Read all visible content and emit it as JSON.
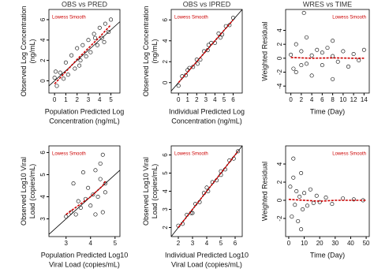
{
  "chart_data": [
    {
      "type": "scatter",
      "title": "OBS vs PRED",
      "xlabel": [
        "Population Predicted Log",
        "Concentration (ng/mL)"
      ],
      "ylabel": [
        "Observed Log Concentration",
        "(ng/mL)"
      ],
      "xlim": [
        -0.5,
        5.8
      ],
      "ylim": [
        -1.2,
        7
      ],
      "xticks": [
        0,
        1,
        2,
        3,
        4,
        5
      ],
      "yticks": [
        0,
        2,
        4,
        6
      ],
      "identity_line": true,
      "legend": "top-left",
      "x": [
        0,
        0.2,
        0.5,
        0.8,
        1,
        1.2,
        1.5,
        1.8,
        2,
        2.3,
        2.5,
        2.8,
        3,
        3.2,
        3.5,
        3.8,
        4,
        4.2,
        4.5,
        4.8,
        5,
        2.2,
        3.6,
        4.4,
        0.1
      ],
      "y": [
        0.3,
        -0.5,
        0.8,
        0.2,
        1.8,
        0.6,
        2.5,
        1.2,
        3.2,
        2,
        3.5,
        2.4,
        4,
        2.8,
        4.6,
        3.5,
        5.2,
        4.2,
        5.6,
        4.8,
        6,
        1.5,
        4.2,
        3.8,
        0.9
      ],
      "smooth": {
        "name": "Lowess Smooth",
        "color": "#cc0000",
        "x": [
          0,
          1,
          2,
          3,
          4,
          5
        ],
        "y": [
          -0.3,
          0.9,
          2.1,
          3.2,
          4.3,
          5.5
        ]
      }
    },
    {
      "type": "scatter",
      "title": "OBS vs IPRED",
      "xlabel": [
        "Individual Predicted Log",
        "Concentration (ng/mL)"
      ],
      "ylabel": [
        "Observed Log Concentration",
        "(ng/mL)"
      ],
      "xlim": [
        -0.8,
        7
      ],
      "ylim": [
        -1,
        7
      ],
      "xticks": [
        0,
        1,
        2,
        3,
        4,
        5,
        6
      ],
      "yticks": [
        0,
        2,
        4,
        6
      ],
      "identity_line": true,
      "legend": "top-left",
      "x": [
        0,
        0.4,
        0.8,
        1.2,
        1.6,
        2,
        2.4,
        2.8,
        3.2,
        3.6,
        4,
        4.4,
        4.8,
        5.2,
        5.6,
        6,
        2.1,
        3.3,
        4.6,
        1
      ],
      "y": [
        -0.3,
        0.6,
        0.7,
        1.4,
        1.5,
        2.2,
        2.2,
        3,
        3.1,
        3.8,
        3.8,
        4.7,
        4.6,
        5.4,
        5.5,
        6.2,
        1.8,
        3.6,
        4.3,
        1.2
      ],
      "smooth": {
        "name": "Lowess Smooth",
        "color": "#cc0000",
        "x": [
          0,
          3,
          6
        ],
        "y": [
          0,
          3,
          6
        ]
      }
    },
    {
      "type": "scatter",
      "title": "WRES vs TIME",
      "xlabel": [
        "Time (Day)"
      ],
      "ylabel": [
        "Weighted Residual"
      ],
      "xlim": [
        -1,
        15
      ],
      "ylim": [
        -5,
        7
      ],
      "xticks": [
        0,
        2,
        4,
        6,
        8,
        10,
        12,
        14
      ],
      "yticks": [
        -4,
        -2,
        0,
        2,
        4
      ],
      "identity_line": false,
      "legend": "top-right",
      "x": [
        0,
        0.5,
        1,
        1,
        2,
        2,
        3,
        3,
        4,
        4,
        5,
        6,
        6,
        7,
        8,
        8,
        8,
        9,
        10,
        11,
        12,
        13,
        14,
        2.5
      ],
      "y": [
        0.5,
        -1.5,
        2,
        -2,
        1,
        -1,
        3,
        -0.8,
        0.4,
        -2.5,
        1.2,
        0.8,
        -1,
        1.5,
        2.5,
        -3,
        0.3,
        -0.5,
        1,
        -1.2,
        0.6,
        -0.3,
        1.2,
        6.5
      ],
      "smooth": {
        "name": "Lowess Smooth",
        "color": "#cc0000",
        "x": [
          0,
          4,
          8,
          12,
          14
        ],
        "y": [
          0.1,
          0,
          0.05,
          0,
          0
        ]
      }
    },
    {
      "type": "scatter",
      "xlabel": [
        "Population Predicted Log10",
        "Viral Load (copies/mL)"
      ],
      "ylabel": [
        "Observed Log10 Viral",
        "Load (copies/mL)"
      ],
      "xlim": [
        2.3,
        5.2
      ],
      "ylim": [
        2.2,
        6.3
      ],
      "xticks": [
        3,
        4,
        5
      ],
      "yticks": [
        3,
        4,
        5,
        6
      ],
      "identity_line": true,
      "legend": "top-left",
      "x": [
        3,
        3.2,
        3.4,
        3.5,
        3.6,
        3.8,
        3.9,
        4,
        4.1,
        4.2,
        4.3,
        4.4,
        4.5,
        4.5,
        4.6,
        3.7,
        4.2,
        4.4,
        3.3,
        4.6
      ],
      "y": [
        3.1,
        3.3,
        3.2,
        3.8,
        3.5,
        3.9,
        4.4,
        3.6,
        4.1,
        5.2,
        4,
        4.8,
        5.9,
        3.3,
        4.6,
        5.1,
        3.2,
        5.5,
        4.6,
        4.2
      ],
      "smooth": {
        "name": "Lowess Smooth",
        "color": "#cc0000",
        "x": [
          3,
          3.5,
          4,
          4.5,
          4.6
        ],
        "y": [
          3.2,
          3.6,
          4,
          4.5,
          4.7
        ]
      }
    },
    {
      "type": "scatter",
      "xlabel": [
        "Individual Predicted Log10",
        "Viral Load (copies/mL)"
      ],
      "ylabel": [
        "Observed Log10 Viral",
        "Load (copies/mL)"
      ],
      "xlim": [
        1.5,
        6.5
      ],
      "ylim": [
        1.5,
        6.5
      ],
      "xticks": [
        2,
        3,
        4,
        5,
        6
      ],
      "yticks": [
        2,
        3,
        4,
        5,
        6
      ],
      "identity_line": true,
      "legend": "top-left",
      "x": [
        2,
        2.3,
        2.6,
        2.9,
        3.2,
        3.5,
        3.8,
        4.1,
        4.4,
        4.7,
        5,
        5.3,
        5.6,
        5.9,
        6.2,
        3,
        4,
        5
      ],
      "y": [
        2.1,
        2.2,
        2.7,
        2.8,
        3.3,
        3.4,
        3.9,
        4,
        4.5,
        4.6,
        5.1,
        5.2,
        5.7,
        5.8,
        6.2,
        2.8,
        4.2,
        4.9
      ],
      "smooth": {
        "name": "Lowess Smooth",
        "color": "#cc0000",
        "x": [
          2,
          4,
          6.2
        ],
        "y": [
          2,
          4,
          6.2
        ]
      }
    },
    {
      "type": "scatter",
      "xlabel": [
        "Time (Day)"
      ],
      "ylabel": [
        "Weighted Residual"
      ],
      "xlim": [
        -2,
        52
      ],
      "ylim": [
        -4,
        6
      ],
      "xticks": [
        0,
        10,
        20,
        30,
        40,
        50
      ],
      "yticks": [
        -2,
        0,
        2,
        4
      ],
      "identity_line": false,
      "legend": "top-right",
      "x": [
        1,
        2,
        3,
        4,
        5,
        6,
        7,
        8,
        9,
        10,
        12,
        14,
        16,
        18,
        20,
        24,
        28,
        35,
        42,
        48,
        3,
        8
      ],
      "y": [
        1.5,
        -1.8,
        2.5,
        -0.5,
        1,
        -2.3,
        0.4,
        3,
        -1,
        0.8,
        -0.6,
        1.2,
        -0.3,
        0.5,
        -0.2,
        0.3,
        -0.4,
        0.2,
        0.1,
        0,
        4.6,
        -3.2
      ],
      "smooth": {
        "name": "Lowess Smooth",
        "color": "#cc0000",
        "x": [
          0,
          10,
          20,
          30,
          40,
          50
        ],
        "y": [
          0.1,
          0,
          -0.1,
          0,
          0,
          0
        ]
      }
    }
  ]
}
